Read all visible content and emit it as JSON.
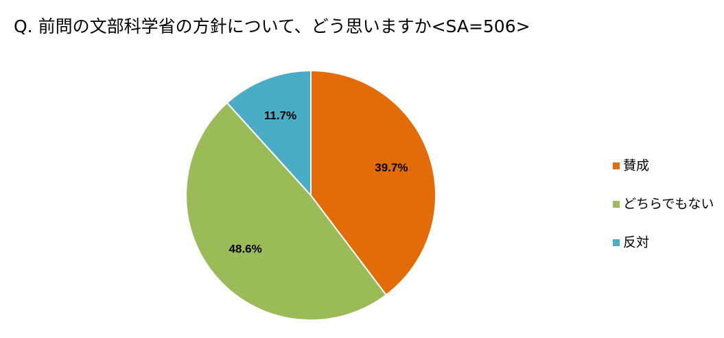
{
  "chart_data": {
    "type": "pie",
    "title": "Q. 前問の文部科学省の方針について、どう思いますか<SA=506>",
    "categories": [
      "賛成",
      "どちらでもない",
      "反対"
    ],
    "values": [
      39.7,
      48.6,
      11.7
    ],
    "value_labels": [
      "39.7%",
      "48.6%",
      "11.7%"
    ],
    "colors": [
      "#e36c0a",
      "#9bbb59",
      "#4bacc6"
    ],
    "legend": "right"
  }
}
